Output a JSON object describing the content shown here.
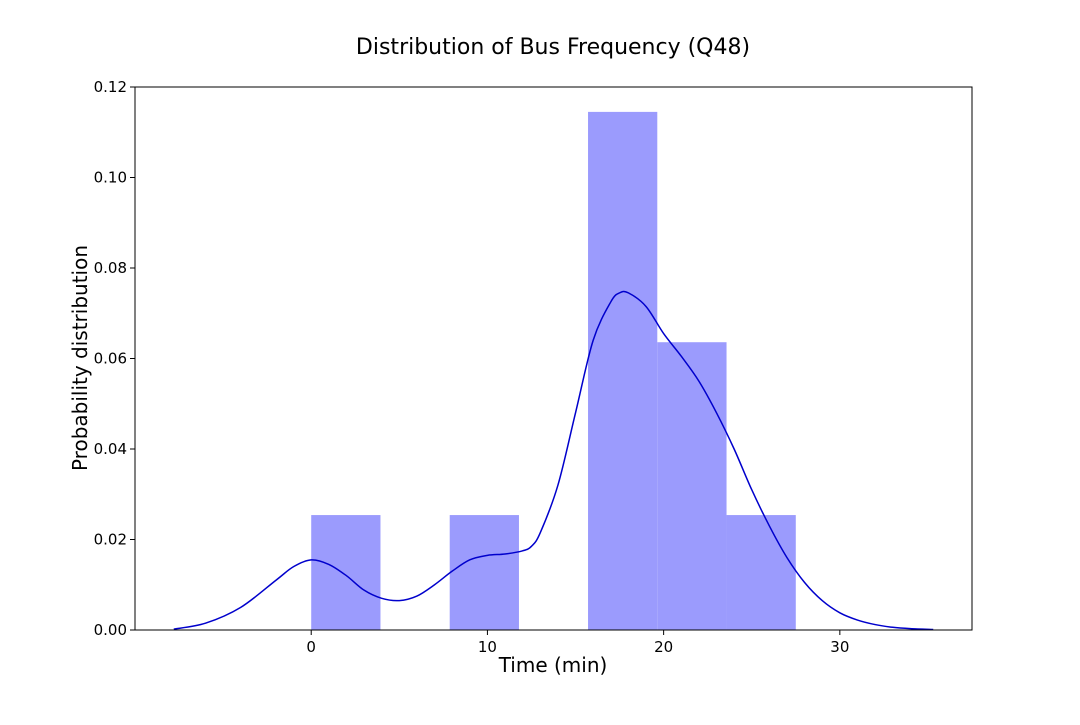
{
  "chart_data": {
    "type": "bar",
    "title": "Distribution of Bus Frequency (Q48)",
    "xlabel": "Time (min)",
    "ylabel": "Probability distribution",
    "xlim": [
      -10,
      37.5
    ],
    "ylim": [
      0,
      0.12
    ],
    "xticks": [
      0,
      10,
      20,
      30
    ],
    "yticks": [
      0.0,
      0.02,
      0.04,
      0.06,
      0.08,
      0.1,
      0.12
    ],
    "ytick_labels": [
      "0.00",
      "0.02",
      "0.04",
      "0.06",
      "0.08",
      "0.10",
      "0.12"
    ],
    "bins": [
      {
        "x0": 0.0,
        "x1": 3.93,
        "density": 0.0254
      },
      {
        "x0": 3.93,
        "x1": 7.86,
        "density": 0.0
      },
      {
        "x0": 7.86,
        "x1": 11.79,
        "density": 0.0254
      },
      {
        "x0": 11.79,
        "x1": 15.71,
        "density": 0.0
      },
      {
        "x0": 15.71,
        "x1": 19.64,
        "density": 0.1145
      },
      {
        "x0": 19.64,
        "x1": 23.57,
        "density": 0.0636
      },
      {
        "x0": 23.57,
        "x1": 27.5,
        "density": 0.0254
      }
    ],
    "kde": {
      "x": [
        -7.8,
        -6,
        -4,
        -2,
        -1,
        0,
        1,
        2,
        3,
        4,
        5,
        6,
        7,
        8,
        9,
        10,
        11,
        12,
        12.5,
        13,
        14,
        15,
        16,
        17,
        17.5,
        18,
        19,
        20,
        21,
        22,
        23,
        24,
        25,
        26,
        27,
        28,
        29,
        30,
        31,
        32,
        33,
        34,
        35.3
      ],
      "y": [
        0.0002,
        0.0015,
        0.005,
        0.011,
        0.014,
        0.0155,
        0.0145,
        0.012,
        0.0088,
        0.007,
        0.0065,
        0.0075,
        0.01,
        0.013,
        0.0155,
        0.0165,
        0.0168,
        0.0175,
        0.0185,
        0.0215,
        0.032,
        0.048,
        0.064,
        0.0725,
        0.0745,
        0.0745,
        0.0715,
        0.0655,
        0.0605,
        0.055,
        0.048,
        0.04,
        0.031,
        0.023,
        0.016,
        0.0105,
        0.0065,
        0.0038,
        0.0022,
        0.0012,
        0.0006,
        0.0003,
        0.0001
      ]
    },
    "grid": false,
    "legend": "none",
    "colors": {
      "bar": "#9b9bfd",
      "kde_line": "#0000cc",
      "axes": "#000000"
    }
  }
}
